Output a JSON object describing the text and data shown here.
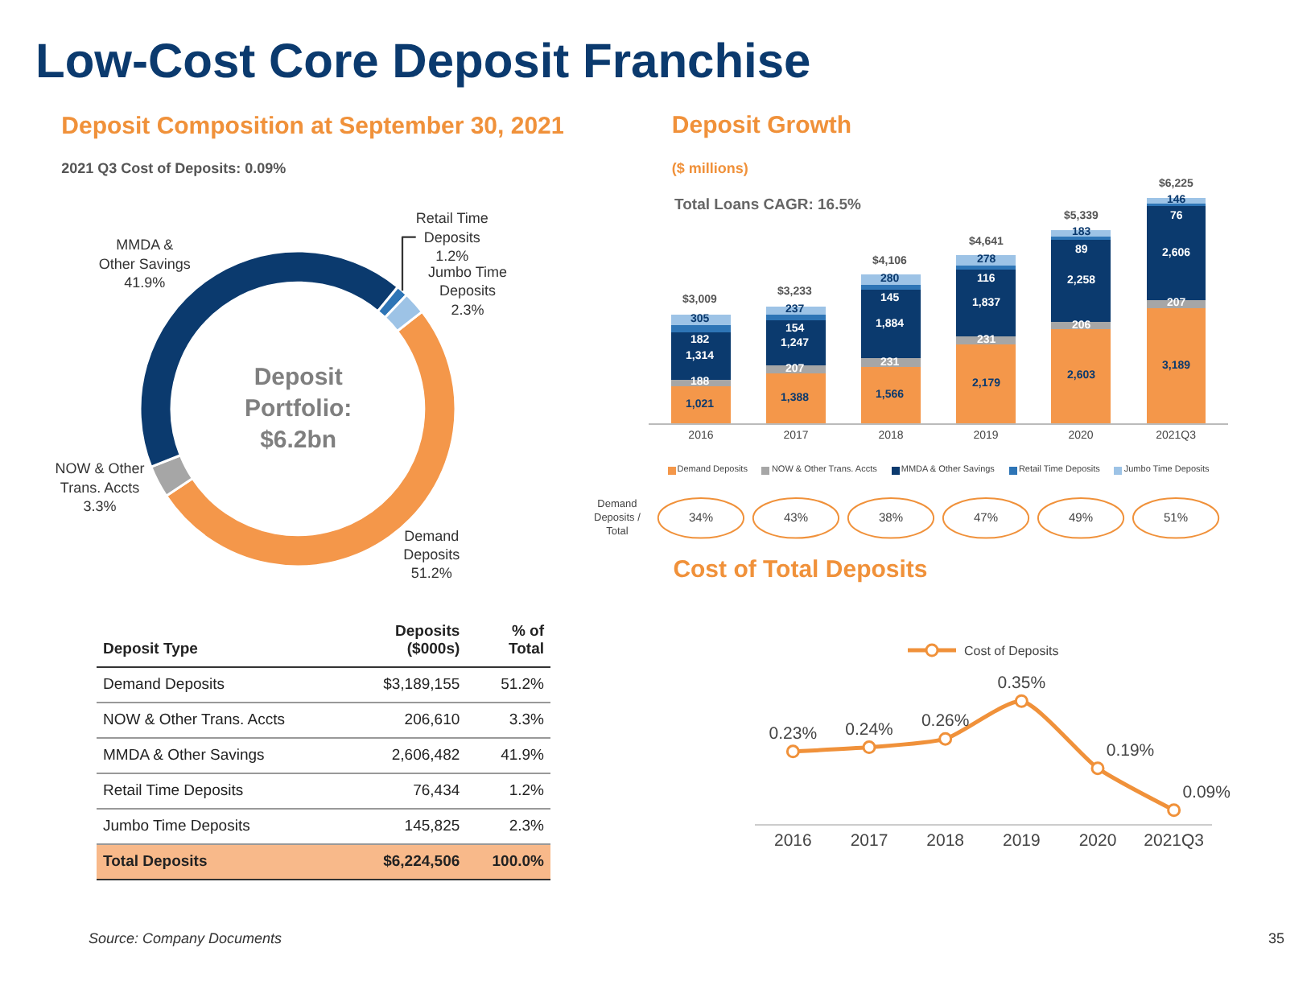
{
  "chart_data": [
    {
      "type": "donut",
      "title": "Deposit Composition at September 30, 2021",
      "subtitle": "2021 Q3 Cost of Deposits: 0.09%",
      "categories": [
        "Demand Deposits",
        "NOW & Other Trans. Accts",
        "MMDA & Other Savings",
        "Retail Time Deposits",
        "Jumbo Time Deposits"
      ],
      "values": [
        51.2,
        3.3,
        41.9,
        1.2,
        2.3
      ],
      "colors": [
        "#f4974a",
        "#a6a6a6",
        "#0b3a6e",
        "#2e75b6",
        "#9dc3e6"
      ],
      "value_labels": [
        "51.2%",
        "3.3%",
        "41.9%",
        "1.2%",
        "2.3%"
      ],
      "annotations": [
        "Low-Cost Core Deposit Franchise",
        "Deposit Portfolio: $6.2bn"
      ]
    },
    {
      "type": "other",
      "xlabel": "Deposit Type",
      "categories": [
        "Demand Deposits",
        "NOW & Other Trans. Accts",
        "MMDA & Other Savings",
        "Retail Time Deposits",
        "Jumbo Time Deposits",
        "Total Deposits"
      ],
      "series": [
        {
          "values": [
            3189155,
            206610,
            2606482,
            76434,
            145825,
            6224506
          ],
          "value_labels": [
            "$3,189,155",
            "206,610",
            "2,606,482",
            "76,434",
            "145,825",
            "$6,224,506"
          ]
        },
        {
          "values": [
            51.2,
            3.3,
            41.9,
            1.2,
            2.3,
            100.0
          ],
          "value_labels": [
            "51.2%",
            "3.3%",
            "41.9%",
            "1.2%",
            "2.3%",
            "100.0%"
          ]
        }
      ],
      "annotations": [
        "Deposits ($000s)",
        "% of Total",
        "Source: Company Documents",
        "35"
      ]
    },
    {
      "type": "bar",
      "stacked": true,
      "title": "Deposit Growth",
      "subtitle": "($ millions)",
      "categories": [
        "2016",
        "2017",
        "2018",
        "2019",
        "2020",
        "2021Q3"
      ],
      "series": [
        {
          "name": "Demand Deposits",
          "color": "#f4974a",
          "values": [
            1021,
            1388,
            1566,
            2179,
            2603,
            3189
          ],
          "value_labels": [
            "1,021",
            "1,388",
            "1,566",
            "2,179",
            "2,603",
            "3,189"
          ]
        },
        {
          "name": "NOW & Other Trans. Accts",
          "color": "#a6a6a6",
          "values": [
            188,
            207,
            231,
            231,
            206,
            207
          ],
          "value_labels": [
            "188",
            "207",
            "231",
            "231",
            "206",
            "207"
          ]
        },
        {
          "name": "MMDA & Other Savings",
          "color": "#0b3a6e",
          "values": [
            1314,
            1247,
            1884,
            1837,
            2258,
            2606
          ],
          "value_labels": [
            "1,314",
            "1,247",
            "1,884",
            "1,837",
            "2,258",
            "2,606"
          ]
        },
        {
          "name": "Retail Time Deposits",
          "color": "#2e75b6",
          "values": [
            182,
            154,
            145,
            116,
            89,
            76
          ],
          "value_labels": [
            "182",
            "154",
            "145",
            "116",
            "89",
            "76"
          ]
        },
        {
          "name": "Jumbo Time Deposits",
          "color": "#9dc3e6",
          "values": [
            305,
            237,
            280,
            278,
            183,
            146
          ],
          "value_labels": [
            "305",
            "237",
            "280",
            "278",
            "183",
            "146"
          ]
        }
      ],
      "totals": [
        "$3,009",
        "$3,233",
        "$4,106",
        "$4,641",
        "$5,339",
        "$6,225"
      ],
      "legend": "bottom",
      "tick_labels": "x",
      "annotations": [
        "Total Loans CAGR: 16.5%",
        "Demand Deposits / Total",
        "34%",
        "43%",
        "38%",
        "47%",
        "49%",
        "51%"
      ]
    },
    {
      "type": "line",
      "title": "Cost of Total Deposits",
      "categories": [
        "2016",
        "2017",
        "2018",
        "2019",
        "2020",
        "2021Q3"
      ],
      "series": [
        {
          "name": "Cost of Deposits",
          "color": "#f0913a",
          "values": [
            0.23,
            0.24,
            0.26,
            0.35,
            0.19,
            0.09
          ],
          "value_labels": [
            "0.23%",
            "0.24%",
            "0.26%",
            "0.35%",
            "0.19%",
            "0.09%"
          ]
        }
      ],
      "marker": "circle",
      "legend": "top",
      "tick_labels": "x"
    }
  ]
}
